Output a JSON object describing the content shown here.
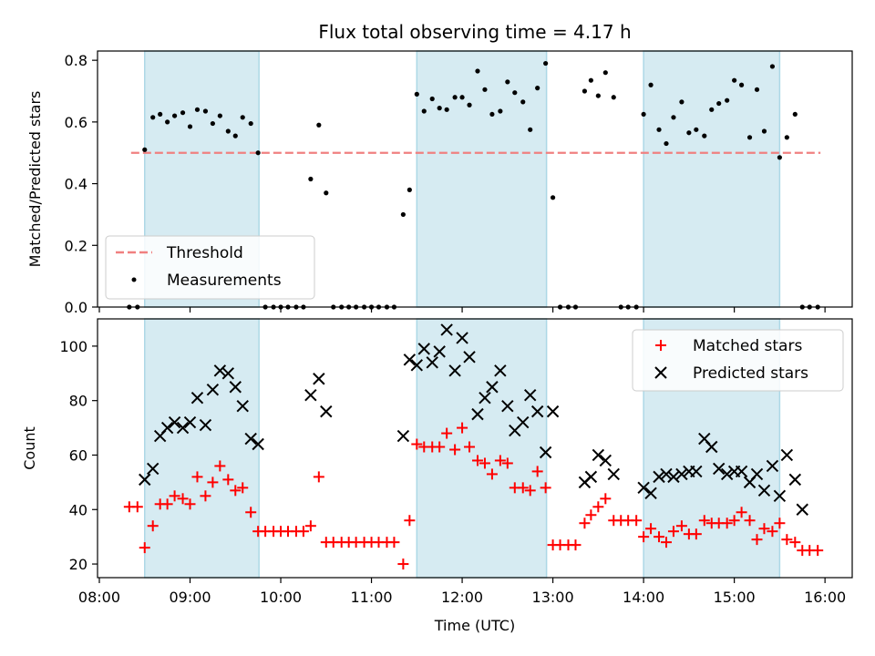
{
  "chart_data": [
    {
      "type": "scatter",
      "title": "Flux total observing time = 4.17 h",
      "ylabel": "Matched/Predicted stars",
      "ylim": [
        0,
        0.83
      ],
      "yticks": [
        "0.0",
        "0.2",
        "0.4",
        "0.6",
        "0.8"
      ],
      "ytick_values": [
        0,
        0.2,
        0.4,
        0.6,
        0.8
      ],
      "grid": false,
      "legend_position": "lower-left",
      "shaded_intervals": [
        [
          8.5,
          9.76
        ],
        [
          11.5,
          12.93
        ],
        [
          14.0,
          15.5
        ]
      ],
      "threshold": {
        "name": "Threshold",
        "value": 0.5,
        "x_range": [
          8.35,
          15.95
        ],
        "color": "#f08080"
      },
      "series": [
        {
          "name": "Measurements",
          "x": [
            8.33,
            8.42,
            8.5,
            8.59,
            8.67,
            8.75,
            8.83,
            8.92,
            9.0,
            9.08,
            9.17,
            9.25,
            9.33,
            9.42,
            9.5,
            9.58,
            9.67,
            9.75,
            9.83,
            9.92,
            10.0,
            10.08,
            10.17,
            10.25,
            10.33,
            10.42,
            10.5,
            10.58,
            10.67,
            10.75,
            10.83,
            10.92,
            11.0,
            11.08,
            11.17,
            11.25,
            11.35,
            11.42,
            11.5,
            11.58,
            11.67,
            11.75,
            11.83,
            11.92,
            12.0,
            12.08,
            12.17,
            12.25,
            12.33,
            12.42,
            12.5,
            12.58,
            12.67,
            12.75,
            12.83,
            12.92,
            13.0,
            13.08,
            13.17,
            13.25,
            13.35,
            13.42,
            13.5,
            13.58,
            13.67,
            13.75,
            13.83,
            13.92,
            14.0,
            14.08,
            14.17,
            14.25,
            14.33,
            14.42,
            14.5,
            14.58,
            14.67,
            14.75,
            14.83,
            14.92,
            15.0,
            15.08,
            15.17,
            15.25,
            15.33,
            15.42,
            15.5,
            15.58,
            15.67,
            15.75,
            15.83,
            15.92
          ],
          "y": [
            0,
            0,
            0.51,
            0.615,
            0.625,
            0.6,
            0.62,
            0.63,
            0.585,
            0.64,
            0.635,
            0.595,
            0.62,
            0.57,
            0.555,
            0.615,
            0.595,
            0.5,
            0,
            0,
            0,
            0,
            0,
            0,
            0.415,
            0.59,
            0.37,
            0,
            0,
            0,
            0,
            0,
            0,
            0,
            0,
            0,
            0.3,
            0.38,
            0.69,
            0.635,
            0.675,
            0.645,
            0.64,
            0.68,
            0.68,
            0.655,
            0.765,
            0.705,
            0.625,
            0.635,
            0.73,
            0.695,
            0.665,
            0.575,
            0.71,
            0.79,
            0.355,
            0,
            0,
            0,
            0.7,
            0.735,
            0.685,
            0.76,
            0.68,
            0,
            0,
            0,
            0.625,
            0.72,
            0.575,
            0.53,
            0.615,
            0.665,
            0.565,
            0.575,
            0.555,
            0.64,
            0.66,
            0.67,
            0.735,
            0.72,
            0.55,
            0.705,
            0.57,
            0.78,
            0.485,
            0.55,
            0.625,
            0,
            0,
            0
          ]
        }
      ]
    },
    {
      "type": "scatter",
      "xlabel": "Time (UTC)",
      "ylabel": "Count",
      "ylim": [
        15,
        110
      ],
      "yticks": [
        "20",
        "40",
        "60",
        "80",
        "100"
      ],
      "ytick_values": [
        20,
        40,
        60,
        80,
        100
      ],
      "xticks": [
        "08:00",
        "09:00",
        "10:00",
        "11:00",
        "12:00",
        "13:00",
        "14:00",
        "15:00",
        "16:00"
      ],
      "xtick_values": [
        8,
        9,
        10,
        11,
        12,
        13,
        14,
        15,
        16
      ],
      "xlim": [
        7.98,
        16.3
      ],
      "grid": false,
      "legend_position": "top-right",
      "shaded_intervals": [
        [
          8.5,
          9.76
        ],
        [
          11.5,
          12.93
        ],
        [
          14.0,
          15.5
        ]
      ],
      "series": [
        {
          "name": "Matched stars",
          "marker": "+",
          "color": "#ff0000",
          "x": [
            8.33,
            8.42,
            8.5,
            8.59,
            8.67,
            8.75,
            8.83,
            8.92,
            9.0,
            9.08,
            9.17,
            9.25,
            9.33,
            9.42,
            9.5,
            9.58,
            9.67,
            9.75,
            9.83,
            9.92,
            10.0,
            10.08,
            10.17,
            10.25,
            10.33,
            10.42,
            10.5,
            10.58,
            10.67,
            10.75,
            10.83,
            10.92,
            11.0,
            11.08,
            11.17,
            11.25,
            11.35,
            11.42,
            11.5,
            11.58,
            11.67,
            11.75,
            11.83,
            11.92,
            12.0,
            12.08,
            12.17,
            12.25,
            12.33,
            12.42,
            12.5,
            12.58,
            12.67,
            12.75,
            12.83,
            12.92,
            13.0,
            13.08,
            13.17,
            13.25,
            13.35,
            13.42,
            13.5,
            13.58,
            13.67,
            13.75,
            13.83,
            13.92,
            14.0,
            14.08,
            14.17,
            14.25,
            14.33,
            14.42,
            14.5,
            14.58,
            14.67,
            14.75,
            14.83,
            14.92,
            15.0,
            15.08,
            15.17,
            15.25,
            15.33,
            15.42,
            15.5,
            15.58,
            15.67,
            15.75,
            15.83,
            15.92
          ],
          "y": [
            41,
            41,
            26,
            34,
            42,
            42,
            45,
            44,
            42,
            52,
            45,
            50,
            56,
            51,
            47,
            48,
            39,
            32,
            32,
            32,
            32,
            32,
            32,
            32,
            34,
            52,
            28,
            28,
            28,
            28,
            28,
            28,
            28,
            28,
            28,
            28,
            20,
            36,
            64,
            63,
            63,
            63,
            68,
            62,
            70,
            63,
            58,
            57,
            53,
            58,
            57,
            48,
            48,
            47,
            54,
            48,
            27,
            27,
            27,
            27,
            35,
            38,
            41,
            44,
            36,
            36,
            36,
            36,
            30,
            33,
            30,
            28,
            32,
            34,
            31,
            31,
            36,
            35,
            35,
            35,
            36,
            39,
            36,
            29,
            33,
            32,
            35,
            29,
            28,
            25,
            25,
            25
          ],
          "mask_note": ""
        },
        {
          "name": "Predicted stars",
          "marker": "x",
          "color": "#000000",
          "x": [
            8.5,
            8.59,
            8.67,
            8.75,
            8.83,
            8.92,
            9.0,
            9.08,
            9.17,
            9.25,
            9.33,
            9.42,
            9.5,
            9.58,
            9.67,
            9.75,
            10.33,
            10.42,
            10.5,
            11.35,
            11.42,
            11.5,
            11.58,
            11.67,
            11.75,
            11.83,
            11.92,
            12.0,
            12.08,
            12.17,
            12.25,
            12.33,
            12.42,
            12.5,
            12.58,
            12.67,
            12.75,
            12.83,
            12.92,
            13.0,
            13.35,
            13.42,
            13.5,
            13.58,
            13.67,
            14.0,
            14.08,
            14.17,
            14.25,
            14.33,
            14.42,
            14.5,
            14.58,
            14.67,
            14.75,
            14.83,
            14.92,
            15.0,
            15.08,
            15.17,
            15.25,
            15.33,
            15.42,
            15.5,
            15.58,
            15.67,
            15.75
          ],
          "y": [
            51,
            55,
            67,
            70,
            72,
            70,
            72,
            81,
            71,
            84,
            91,
            90,
            85,
            78,
            66,
            64,
            82,
            88,
            76,
            67,
            95,
            93,
            99,
            94,
            98,
            106,
            91,
            103,
            96,
            75,
            81,
            85,
            91,
            78,
            69,
            72,
            82,
            76,
            61,
            76,
            50,
            52,
            60,
            58,
            53,
            48,
            46,
            52,
            53,
            52,
            53,
            54,
            54,
            66,
            63,
            55,
            53,
            54,
            54,
            50,
            53,
            47,
            56,
            45,
            60,
            51,
            40
          ]
        }
      ]
    }
  ]
}
